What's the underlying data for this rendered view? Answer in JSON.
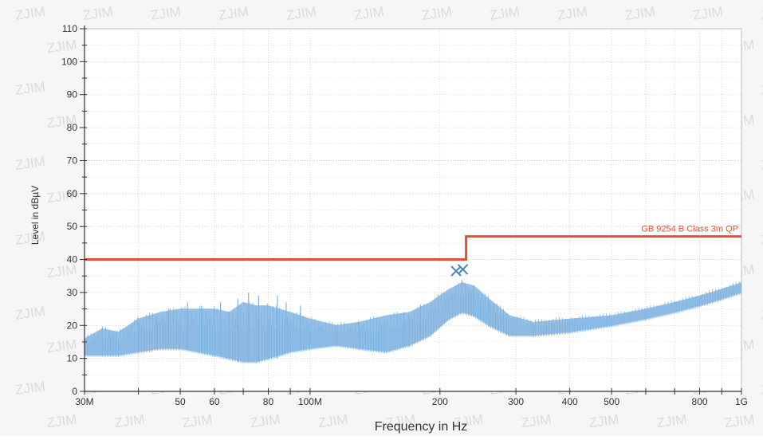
{
  "chart_data": {
    "type": "line",
    "xscale": "log",
    "xlim": [
      30000000,
      1000000000
    ],
    "ylim": [
      0,
      110
    ],
    "xlabel": "Frequency in Hz",
    "ylabel": "Level in dBµV",
    "watermark_text": "ZJIM",
    "y_ticks": [
      {
        "value": 0,
        "label": "0"
      },
      {
        "value": 10,
        "label": "10"
      },
      {
        "value": 20,
        "label": "20"
      },
      {
        "value": 30,
        "label": "30"
      },
      {
        "value": 40,
        "label": "40"
      },
      {
        "value": 50,
        "label": "50"
      },
      {
        "value": 60,
        "label": "60"
      },
      {
        "value": 70,
        "label": "70"
      },
      {
        "value": 80,
        "label": "80"
      },
      {
        "value": 90,
        "label": "90"
      },
      {
        "value": 100,
        "label": "100"
      },
      {
        "value": 110,
        "label": "110"
      }
    ],
    "x_ticks": [
      {
        "value": 30000000,
        "label": "30M"
      },
      {
        "value": 50000000,
        "label": "50"
      },
      {
        "value": 60000000,
        "label": "60"
      },
      {
        "value": 80000000,
        "label": "80"
      },
      {
        "value": 100000000,
        "label": "100M"
      },
      {
        "value": 200000000,
        "label": "200"
      },
      {
        "value": 300000000,
        "label": "300"
      },
      {
        "value": 400000000,
        "label": "400"
      },
      {
        "value": 500000000,
        "label": "500"
      },
      {
        "value": 800000000,
        "label": "800"
      },
      {
        "value": 1000000000,
        "label": "1G"
      }
    ],
    "limit_line": {
      "label": "GB 9254 B Class 3m QP",
      "color": "#e0503a",
      "points": [
        [
          30000000,
          40
        ],
        [
          230000000,
          40
        ],
        [
          230000000,
          47
        ],
        [
          1000000000,
          47
        ]
      ]
    },
    "measurement": {
      "color": "#8fbde6",
      "envelope": [
        {
          "f": 30000000,
          "low": 11,
          "high": 16
        },
        {
          "f": 33000000,
          "low": 11,
          "high": 19
        },
        {
          "f": 36000000,
          "low": 11,
          "high": 18
        },
        {
          "f": 40000000,
          "low": 12,
          "high": 22
        },
        {
          "f": 45000000,
          "low": 13,
          "high": 24
        },
        {
          "f": 50000000,
          "low": 13,
          "high": 25
        },
        {
          "f": 55000000,
          "low": 12,
          "high": 25
        },
        {
          "f": 60000000,
          "low": 11,
          "high": 25
        },
        {
          "f": 65000000,
          "low": 10,
          "high": 24
        },
        {
          "f": 70000000,
          "low": 9,
          "high": 27
        },
        {
          "f": 75000000,
          "low": 9,
          "high": 26
        },
        {
          "f": 80000000,
          "low": 10,
          "high": 26
        },
        {
          "f": 90000000,
          "low": 12,
          "high": 24
        },
        {
          "f": 100000000,
          "low": 13,
          "high": 22
        },
        {
          "f": 115000000,
          "low": 14,
          "high": 20
        },
        {
          "f": 130000000,
          "low": 13,
          "high": 21
        },
        {
          "f": 150000000,
          "low": 12,
          "high": 23
        },
        {
          "f": 170000000,
          "low": 14,
          "high": 24
        },
        {
          "f": 190000000,
          "low": 17,
          "high": 27
        },
        {
          "f": 210000000,
          "low": 22,
          "high": 31
        },
        {
          "f": 225000000,
          "low": 24,
          "high": 33
        },
        {
          "f": 240000000,
          "low": 23,
          "high": 32
        },
        {
          "f": 260000000,
          "low": 20,
          "high": 28
        },
        {
          "f": 290000000,
          "low": 17,
          "high": 23
        },
        {
          "f": 330000000,
          "low": 17,
          "high": 21
        },
        {
          "f": 400000000,
          "low": 18,
          "high": 22
        },
        {
          "f": 500000000,
          "low": 20,
          "high": 23
        },
        {
          "f": 600000000,
          "low": 22,
          "high": 25
        },
        {
          "f": 700000000,
          "low": 24,
          "high": 27
        },
        {
          "f": 800000000,
          "low": 26,
          "high": 29
        },
        {
          "f": 900000000,
          "low": 28,
          "high": 31
        },
        {
          "f": 1000000000,
          "low": 30,
          "high": 33
        }
      ],
      "spikes": [
        {
          "f": 40000000,
          "value": 21
        },
        {
          "f": 44000000,
          "value": 23
        },
        {
          "f": 47000000,
          "value": 25
        },
        {
          "f": 52000000,
          "value": 27
        },
        {
          "f": 56000000,
          "value": 26
        },
        {
          "f": 62000000,
          "value": 27
        },
        {
          "f": 68000000,
          "value": 28
        },
        {
          "f": 72000000,
          "value": 30
        },
        {
          "f": 76000000,
          "value": 29
        },
        {
          "f": 84000000,
          "value": 29
        },
        {
          "f": 88000000,
          "value": 27
        },
        {
          "f": 95000000,
          "value": 26
        },
        {
          "f": 165000000,
          "value": 24
        },
        {
          "f": 180000000,
          "value": 26
        }
      ]
    },
    "markers": [
      {
        "f": 218000000,
        "value": 36.5,
        "symbol": "x",
        "color": "#4a7fc1"
      },
      {
        "f": 226000000,
        "value": 37,
        "symbol": "x",
        "color": "#4a7fc1"
      }
    ]
  }
}
